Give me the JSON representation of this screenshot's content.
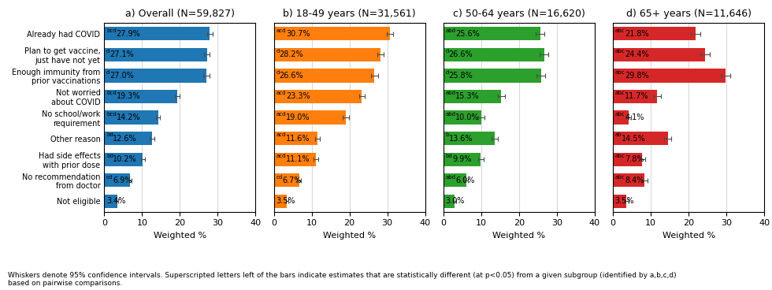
{
  "chart_data": [
    {
      "type": "bar",
      "orientation": "horizontal",
      "title": "a) Overall (N=59,827)",
      "categories": [
        "Already had COVID",
        "Plan to get vaccine,\njust have not yet",
        "Enough immunity from\nprior vaccinations",
        "Not worried\nabout COVID",
        "No school/work\nrequirement",
        "Other reason",
        "Had side effects\nwith prior dose",
        "No recommendation\nfrom doctor",
        "Not eligible"
      ],
      "values": [
        27.9,
        27.1,
        27.0,
        19.3,
        14.2,
        12.6,
        10.2,
        6.9,
        3.4
      ],
      "errors": [
        0.8,
        0.8,
        0.8,
        0.7,
        0.6,
        0.6,
        0.5,
        0.4,
        0.3
      ],
      "data_labels": true,
      "value_labels": [
        "27.9%",
        "27.1%",
        "27.0%",
        "19.3%",
        "14.2%",
        "12.6%",
        "10.2%",
        "6.9%",
        "3.4%"
      ],
      "annotations": [
        "bcd",
        "d",
        "d",
        "bcd",
        "bcd",
        "bd",
        "bd",
        "cd",
        null
      ],
      "xlim": [
        0,
        40
      ],
      "xticks": [
        0,
        10,
        20,
        30,
        40
      ],
      "xlabel": "Weighted %",
      "grid": true
    },
    {
      "type": "bar",
      "orientation": "horizontal",
      "title": "b) 18-49 years (N=31,561)",
      "categories": [
        "Already had COVID",
        "Plan to get vaccine,\njust have not yet",
        "Enough immunity from\nprior vaccinations",
        "Not worried\nabout COVID",
        "No school/work\nrequirement",
        "Other reason",
        "Had side effects\nwith prior dose",
        "No recommendation\nfrom doctor",
        "Not eligible"
      ],
      "values": [
        30.7,
        28.2,
        26.6,
        23.3,
        19.0,
        11.6,
        11.1,
        6.7,
        3.5
      ],
      "errors": [
        0.9,
        0.9,
        0.9,
        0.8,
        0.8,
        0.6,
        0.6,
        0.5,
        0.3
      ],
      "data_labels": true,
      "value_labels": [
        "30.7%",
        "28.2%",
        "26.6%",
        "23.3%",
        "19.0%",
        "11.6%",
        "11.1%",
        "6.7%",
        "3.5%"
      ],
      "annotations": [
        "acd",
        "d",
        "d",
        "acd",
        "acd",
        "acd",
        "acd",
        "cd",
        null
      ],
      "xlim": [
        0,
        40
      ],
      "xticks": [
        0,
        10,
        20,
        30,
        40
      ],
      "xlabel": "Weighted %",
      "grid": true,
      "tick_labels": "x"
    },
    {
      "type": "bar",
      "orientation": "horizontal",
      "title": "c) 50-64 years (N=16,620)",
      "categories": [
        "Already had COVID",
        "Plan to get vaccine,\njust have not yet",
        "Enough immunity from\nprior vaccinations",
        "Not worried\nabout COVID",
        "No school/work\nrequirement",
        "Other reason",
        "Had side effects\nwith prior dose",
        "No recommendation\nfrom doctor",
        "Not eligible"
      ],
      "values": [
        25.6,
        26.6,
        25.8,
        15.3,
        10.0,
        13.6,
        9.9,
        6.0,
        3.0
      ],
      "errors": [
        1.1,
        1.1,
        1.1,
        0.9,
        0.8,
        0.9,
        0.8,
        0.6,
        0.4
      ],
      "data_labels": true,
      "value_labels": [
        "25.6%",
        "26.6%",
        "25.8%",
        "15.3%",
        "10.0%",
        "13.6%",
        "9.9%",
        "6.0%",
        "3.0%"
      ],
      "annotations": [
        "abd",
        "d",
        "d",
        "abd",
        "abd",
        "b",
        "bd",
        "abd",
        null
      ],
      "xlim": [
        0,
        40
      ],
      "xticks": [
        0,
        10,
        20,
        30,
        40
      ],
      "xlabel": "Weighted %",
      "grid": true,
      "tick_labels": "x"
    },
    {
      "type": "bar",
      "orientation": "horizontal",
      "title": "d) 65+ years (N=11,646)",
      "categories": [
        "Already had COVID",
        "Plan to get vaccine,\njust have not yet",
        "Enough immunity from\nprior vaccinations",
        "Not worried\nabout COVID",
        "No school/work\nrequirement",
        "Other reason",
        "Had side effects\nwith prior dose",
        "No recommendation\nfrom doctor",
        "Not eligible"
      ],
      "values": [
        21.8,
        24.4,
        29.8,
        11.7,
        4.1,
        14.5,
        7.8,
        8.4,
        3.5
      ],
      "errors": [
        1.2,
        1.3,
        1.3,
        1.0,
        0.6,
        1.0,
        0.8,
        0.8,
        0.6
      ],
      "data_labels": true,
      "value_labels": [
        "21.8%",
        "24.4%",
        "29.8%",
        "11.7%",
        "4.1%",
        "14.5%",
        "7.8%",
        "8.4%",
        "3.5%"
      ],
      "annotations": [
        "abc",
        "abc",
        "abc",
        "abc",
        "abc",
        "ab",
        "abc",
        "abc",
        null
      ],
      "xlim": [
        0,
        40
      ],
      "xticks": [
        0,
        10,
        20,
        30,
        40
      ],
      "xlabel": "Weighted %",
      "grid": true,
      "tick_labels": "x"
    }
  ],
  "footnote": "Whiskers denote 95% confidence intervals. Superscripted letters left of the bars indicate estimates that are statistically different (at p<0.05) from a given subgroup (identified by a,b,c,d)\nbased on pairwise comparisons."
}
